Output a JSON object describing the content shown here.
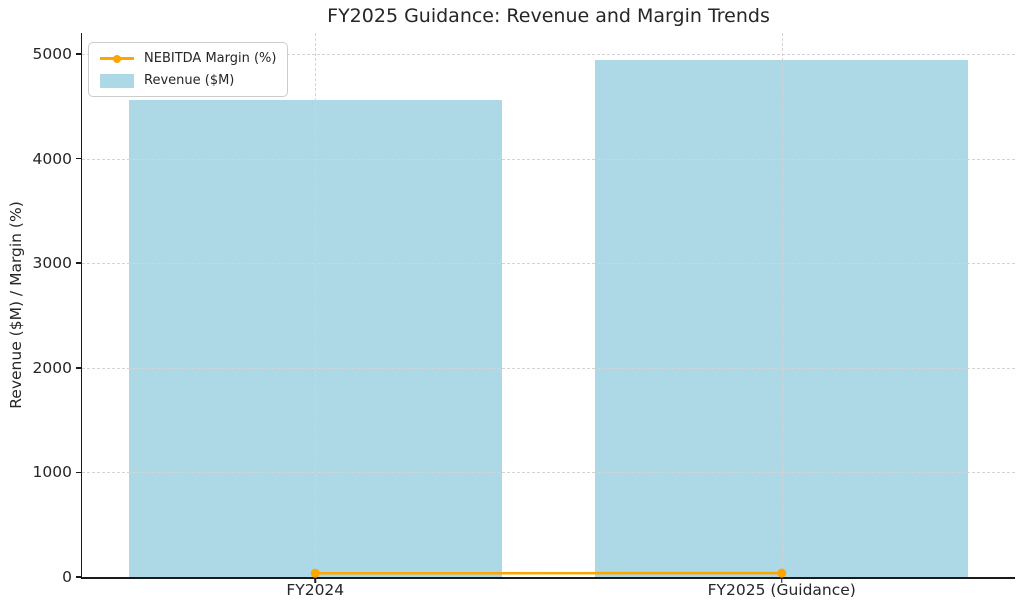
{
  "chart_data": {
    "type": "bar",
    "title": "FY2025 Guidance: Revenue and Margin Trends",
    "categories": [
      "FY2024",
      "FY2025 (Guidance)"
    ],
    "series": [
      {
        "name": "Revenue ($M)",
        "kind": "bar",
        "color": "#ADD8E6",
        "values": [
          4560,
          4940
        ]
      },
      {
        "name": "NEBITDA Margin (%)",
        "kind": "line",
        "color": "#FFA500",
        "marker": "circle",
        "values": [
          36,
          37
        ]
      }
    ],
    "xlabel": "",
    "ylabel": "Revenue ($M) / Margin (%)",
    "yticks": [
      0,
      1000,
      2000,
      3000,
      4000,
      5000
    ],
    "ylim": [
      0,
      5200
    ],
    "bar_width_fraction": 0.8,
    "grid": true,
    "grid_style": "dashed",
    "legend_position": "upper left",
    "legend": [
      "NEBITDA Margin (%)",
      "Revenue ($M)"
    ],
    "colors": {
      "bar_fill": "#ADD8E6",
      "line": "#FFA500",
      "text": "#262626",
      "grid": "#d4d4d4",
      "spine": "#1a1a1a",
      "background": "#ffffff"
    }
  }
}
